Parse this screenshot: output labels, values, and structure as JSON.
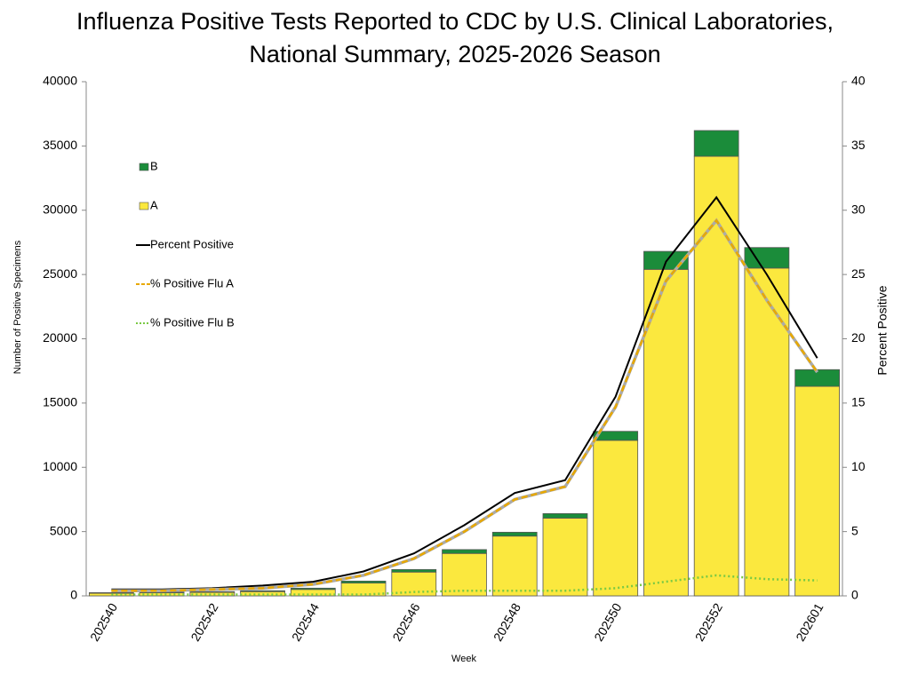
{
  "chart_data": {
    "type": "bar",
    "title": [
      "Influenza Positive Tests Reported to CDC by U.S. Clinical Laboratories,",
      "National Summary, 2025-2026 Season"
    ],
    "x_label": "Week",
    "y_label": "Number of Positive Specimens",
    "y2_label": "Percent Positive",
    "categories": [
      "202540",
      null,
      "202542",
      null,
      "202544",
      null,
      "202546",
      null,
      "202548",
      null,
      "202550",
      null,
      "202552",
      null,
      "202601"
    ],
    "series": [
      {
        "name": "A",
        "color": "#fbe83e",
        "type": "bar",
        "values": [
          200,
          240,
          270,
          330,
          500,
          1000,
          1850,
          3300,
          4650,
          6050,
          12100,
          25400,
          34200,
          25500,
          16300
        ]
      },
      {
        "name": "B",
        "color": "#1b8c3a",
        "type": "bar",
        "values": [
          50,
          60,
          60,
          70,
          100,
          150,
          200,
          300,
          300,
          350,
          700,
          1400,
          2000,
          1600,
          1300
        ]
      },
      {
        "name": "Percent Positive",
        "color": "#000000",
        "type": "line",
        "axis": "y2",
        "dash": "solid",
        "values": [
          0.5,
          0.5,
          0.6,
          0.8,
          1.1,
          1.9,
          3.3,
          5.5,
          8.0,
          9.0,
          15.5,
          26,
          31,
          25,
          18.5
        ]
      },
      {
        "name": "% Positive Flu A",
        "color": "#e8a800",
        "type": "line",
        "axis": "y2",
        "dash": "dashed",
        "values": [
          0.4,
          0.4,
          0.5,
          0.6,
          0.9,
          1.6,
          2.9,
          5.0,
          7.5,
          8.5,
          14.7,
          24.5,
          29.2,
          23,
          17.4
        ]
      },
      {
        "name": "% Positive Flu B",
        "color": "#7ac943",
        "type": "line",
        "axis": "y2",
        "dash": "dotted",
        "values": [
          0.1,
          0.1,
          0.1,
          0.1,
          0.1,
          0.1,
          0.3,
          0.4,
          0.4,
          0.4,
          0.6,
          1.1,
          1.6,
          1.3,
          1.2
        ]
      }
    ],
    "ylim": [
      0,
      40000
    ],
    "yticks": [
      0,
      5000,
      10000,
      15000,
      20000,
      25000,
      30000,
      35000,
      40000
    ],
    "y2lim": [
      0,
      40
    ],
    "y2ticks": [
      0,
      5,
      10,
      15,
      20,
      25,
      30,
      35,
      40
    ],
    "legend": "upper left",
    "grid": false
  }
}
